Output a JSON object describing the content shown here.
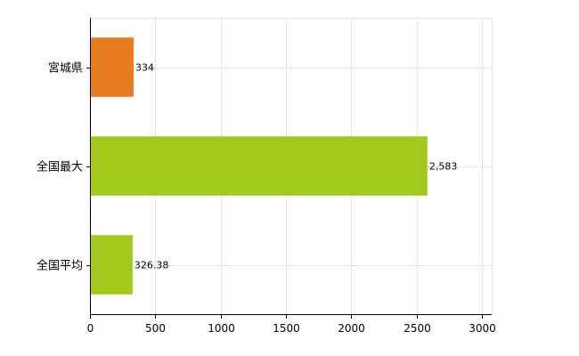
{
  "chart_data": {
    "type": "bar",
    "orientation": "horizontal",
    "categories": [
      "宮城県",
      "全国最大",
      "全国平均"
    ],
    "values": [
      334,
      2583,
      326.38
    ],
    "value_labels": [
      "334",
      "2,583",
      "326.38"
    ],
    "bar_colors": [
      "#e87a22",
      "#a3c91d",
      "#a3c91d"
    ],
    "xlim": [
      0,
      3000
    ],
    "xticks": [
      0,
      500,
      1000,
      1500,
      2000,
      2500,
      3000
    ],
    "xtick_labels": [
      "0",
      "500",
      "1000",
      "1500",
      "2000",
      "2500",
      "3000"
    ],
    "grid": true,
    "title": "",
    "xlabel": "",
    "ylabel": ""
  }
}
